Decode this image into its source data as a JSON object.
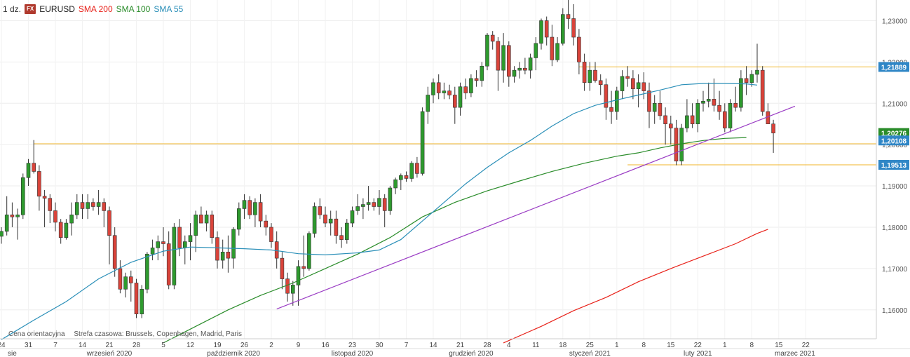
{
  "header": {
    "period": "1 dz.",
    "badge": "FX",
    "symbol": "EURUSD",
    "sma200_label": "SMA 200",
    "sma100_label": "SMA 100",
    "sma55_label": "SMA 55"
  },
  "footer": {
    "price_type": "Cena orientacyjna",
    "timezone": "Strefa czasowa: Brussels, Copenhagen, Madrid, Paris"
  },
  "colors": {
    "up": "#2e9a2e",
    "down": "#d9433a",
    "sma200": "#e8231b",
    "sma100": "#2a8c2a",
    "sma55": "#2a8fb8",
    "trendline": "#9a3cc4",
    "level": "#f0b429"
  },
  "chart_data": {
    "type": "candlestick",
    "ylim": [
      1.153,
      1.235
    ],
    "y_ticks": [
      "1,16000",
      "1,17000",
      "1,18000",
      "1,19000",
      "1,20000",
      "1,21000",
      "1,22000",
      "1,23000"
    ],
    "x_ticks": [
      {
        "i": 0,
        "label": "24"
      },
      {
        "i": 5,
        "label": "31"
      },
      {
        "i": 10,
        "label": "7"
      },
      {
        "i": 15,
        "label": "14"
      },
      {
        "i": 20,
        "label": "21"
      },
      {
        "i": 25,
        "label": "28"
      },
      {
        "i": 30,
        "label": "5"
      },
      {
        "i": 35,
        "label": "12"
      },
      {
        "i": 40,
        "label": "19"
      },
      {
        "i": 45,
        "label": "26"
      },
      {
        "i": 50,
        "label": "2"
      },
      {
        "i": 55,
        "label": "9"
      },
      {
        "i": 60,
        "label": "16"
      },
      {
        "i": 65,
        "label": "23"
      },
      {
        "i": 70,
        "label": "30"
      },
      {
        "i": 75,
        "label": "7"
      },
      {
        "i": 80,
        "label": "14"
      },
      {
        "i": 85,
        "label": "21"
      },
      {
        "i": 90,
        "label": "28"
      },
      {
        "i": 94,
        "label": "4"
      },
      {
        "i": 99,
        "label": "11"
      },
      {
        "i": 104,
        "label": "18"
      },
      {
        "i": 109,
        "label": "25"
      },
      {
        "i": 114,
        "label": "1"
      },
      {
        "i": 119,
        "label": "8"
      },
      {
        "i": 124,
        "label": "15"
      },
      {
        "i": 129,
        "label": "22"
      },
      {
        "i": 134,
        "label": "1"
      },
      {
        "i": 139,
        "label": "8"
      },
      {
        "i": 144,
        "label": "15"
      },
      {
        "i": 149,
        "label": "22"
      }
    ],
    "months": [
      {
        "i": 2,
        "label": "sie"
      },
      {
        "i": 20,
        "label": "wrzesień 2020"
      },
      {
        "i": 43,
        "label": "październik 2020"
      },
      {
        "i": 65,
        "label": "listopad 2020"
      },
      {
        "i": 87,
        "label": "grudzień 2020"
      },
      {
        "i": 109,
        "label": "styczeń 2021"
      },
      {
        "i": 129,
        "label": "luty 2021"
      },
      {
        "i": 147,
        "label": "marzec 2021"
      }
    ],
    "right_labels": [
      {
        "value": 1.2188,
        "text": "1,21889",
        "color": "#2f86c6"
      },
      {
        "value": 1.2028,
        "text": "1,20276",
        "color": "#2a8c2a"
      },
      {
        "value": 1.201,
        "text": "1,20108",
        "color": "#2f86c6"
      },
      {
        "value": 1.1951,
        "text": "1,19513",
        "color": "#2f86c6"
      }
    ],
    "levels": [
      {
        "from": 6,
        "y": 1.2002
      },
      {
        "from": 107,
        "y": 1.2188
      },
      {
        "from": 116,
        "y": 1.1951
      }
    ],
    "trendline": {
      "x1": 51,
      "y1": 1.1602,
      "x2": 147,
      "y2": 1.2093
    },
    "candles": [
      [
        1.1778,
        1.18,
        1.176,
        1.179
      ],
      [
        1.179,
        1.1875,
        1.178,
        1.183
      ],
      [
        1.183,
        1.186,
        1.18,
        1.1825
      ],
      [
        1.1825,
        1.1845,
        1.177,
        1.183
      ],
      [
        1.183,
        1.193,
        1.182,
        1.192
      ],
      [
        1.192,
        1.1965,
        1.19,
        1.1955
      ],
      [
        1.1955,
        1.2011,
        1.193,
        1.1935
      ],
      [
        1.1935,
        1.195,
        1.184,
        1.1875
      ],
      [
        1.1875,
        1.189,
        1.18,
        1.187
      ],
      [
        1.187,
        1.188,
        1.181,
        1.184
      ],
      [
        1.184,
        1.186,
        1.179,
        1.1812
      ],
      [
        1.1812,
        1.182,
        1.176,
        1.1775
      ],
      [
        1.1775,
        1.182,
        1.177,
        1.181
      ],
      [
        1.181,
        1.186,
        1.178,
        1.183
      ],
      [
        1.183,
        1.188,
        1.182,
        1.186
      ],
      [
        1.186,
        1.188,
        1.182,
        1.1845
      ],
      [
        1.1845,
        1.188,
        1.182,
        1.186
      ],
      [
        1.186,
        1.187,
        1.184,
        1.185
      ],
      [
        1.185,
        1.189,
        1.183,
        1.186
      ],
      [
        1.186,
        1.187,
        1.18,
        1.184
      ],
      [
        1.184,
        1.185,
        1.171,
        1.178
      ],
      [
        1.178,
        1.18,
        1.168,
        1.17
      ],
      [
        1.17,
        1.172,
        1.164,
        1.165
      ],
      [
        1.165,
        1.169,
        1.163,
        1.168
      ],
      [
        1.168,
        1.1695,
        1.162,
        1.1665
      ],
      [
        1.1665,
        1.1675,
        1.158,
        1.159
      ],
      [
        1.159,
        1.166,
        1.158,
        1.165
      ],
      [
        1.165,
        1.174,
        1.164,
        1.1735
      ],
      [
        1.1735,
        1.177,
        1.172,
        1.175
      ],
      [
        1.175,
        1.178,
        1.172,
        1.1765
      ],
      [
        1.1765,
        1.18,
        1.173,
        1.176
      ],
      [
        1.176,
        1.179,
        1.165,
        1.166
      ],
      [
        1.166,
        1.181,
        1.165,
        1.18
      ],
      [
        1.18,
        1.182,
        1.173,
        1.175
      ],
      [
        1.175,
        1.178,
        1.171,
        1.1765
      ],
      [
        1.1765,
        1.181,
        1.172,
        1.178
      ],
      [
        1.178,
        1.184,
        1.174,
        1.183
      ],
      [
        1.183,
        1.185,
        1.181,
        1.181
      ],
      [
        1.181,
        1.184,
        1.179,
        1.183
      ],
      [
        1.183,
        1.184,
        1.176,
        1.1775
      ],
      [
        1.1775,
        1.179,
        1.17,
        1.172
      ],
      [
        1.172,
        1.177,
        1.17,
        1.174
      ],
      [
        1.174,
        1.178,
        1.169,
        1.1725
      ],
      [
        1.1725,
        1.18,
        1.17,
        1.1795
      ],
      [
        1.1795,
        1.186,
        1.178,
        1.1845
      ],
      [
        1.1845,
        1.188,
        1.182,
        1.1865
      ],
      [
        1.1865,
        1.1875,
        1.182,
        1.183
      ],
      [
        1.183,
        1.187,
        1.18,
        1.186
      ],
      [
        1.186,
        1.188,
        1.18,
        1.1815
      ],
      [
        1.1815,
        1.183,
        1.178,
        1.18
      ],
      [
        1.18,
        1.181,
        1.175,
        1.1765
      ],
      [
        1.1765,
        1.179,
        1.17,
        1.1725
      ],
      [
        1.1725,
        1.174,
        1.165,
        1.1675
      ],
      [
        1.1675,
        1.169,
        1.162,
        1.164
      ],
      [
        1.164,
        1.167,
        1.161,
        1.166
      ],
      [
        1.166,
        1.172,
        1.161,
        1.1705
      ],
      [
        1.1705,
        1.178,
        1.168,
        1.17
      ],
      [
        1.17,
        1.179,
        1.1695,
        1.1785
      ],
      [
        1.1785,
        1.186,
        1.1775,
        1.185
      ],
      [
        1.185,
        1.187,
        1.182,
        1.183
      ],
      [
        1.183,
        1.185,
        1.18,
        1.181
      ],
      [
        1.181,
        1.184,
        1.178,
        1.182
      ],
      [
        1.182,
        1.184,
        1.176,
        1.178
      ],
      [
        1.178,
        1.18,
        1.175,
        1.177
      ],
      [
        1.177,
        1.182,
        1.176,
        1.181
      ],
      [
        1.181,
        1.185,
        1.18,
        1.184
      ],
      [
        1.184,
        1.188,
        1.183,
        1.185
      ],
      [
        1.185,
        1.187,
        1.182,
        1.1855
      ],
      [
        1.1855,
        1.19,
        1.184,
        1.186
      ],
      [
        1.186,
        1.187,
        1.184,
        1.185
      ],
      [
        1.185,
        1.189,
        1.183,
        1.187
      ],
      [
        1.187,
        1.188,
        1.18,
        1.184
      ],
      [
        1.184,
        1.19,
        1.183,
        1.1895
      ],
      [
        1.1895,
        1.192,
        1.188,
        1.1915
      ],
      [
        1.1915,
        1.193,
        1.189,
        1.1925
      ],
      [
        1.1925,
        1.1935,
        1.191,
        1.1918
      ],
      [
        1.1918,
        1.196,
        1.191,
        1.1955
      ],
      [
        1.1955,
        1.197,
        1.192,
        1.193
      ],
      [
        1.193,
        1.209,
        1.1925,
        1.208
      ],
      [
        1.208,
        1.214,
        1.205,
        1.212
      ],
      [
        1.212,
        1.216,
        1.21,
        1.215
      ],
      [
        1.215,
        1.217,
        1.211,
        1.2125
      ],
      [
        1.2125,
        1.215,
        1.211,
        1.213
      ],
      [
        1.213,
        1.2145,
        1.211,
        1.212
      ],
      [
        1.212,
        1.214,
        1.205,
        1.209
      ],
      [
        1.209,
        1.215,
        1.207,
        1.214
      ],
      [
        1.214,
        1.216,
        1.211,
        1.2125
      ],
      [
        1.2125,
        1.217,
        1.2115,
        1.216
      ],
      [
        1.216,
        1.218,
        1.214,
        1.2155
      ],
      [
        1.2155,
        1.22,
        1.214,
        1.219
      ],
      [
        1.219,
        1.227,
        1.218,
        1.2265
      ],
      [
        1.2265,
        1.2275,
        1.223,
        1.225
      ],
      [
        1.225,
        1.226,
        1.213,
        1.218
      ],
      [
        1.218,
        1.227,
        1.215,
        1.224
      ],
      [
        1.224,
        1.225,
        1.214,
        1.2165
      ],
      [
        1.2165,
        1.219,
        1.215,
        1.218
      ],
      [
        1.218,
        1.22,
        1.216,
        1.2185
      ],
      [
        1.2185,
        1.221,
        1.217,
        1.218
      ],
      [
        1.218,
        1.222,
        1.216,
        1.221
      ],
      [
        1.221,
        1.226,
        1.218,
        1.2245
      ],
      [
        1.2245,
        1.2305,
        1.223,
        1.23
      ],
      [
        1.23,
        1.231,
        1.224,
        1.226
      ],
      [
        1.226,
        1.229,
        1.219,
        1.2205
      ],
      [
        1.2205,
        1.226,
        1.22,
        1.2245
      ],
      [
        1.2245,
        1.233,
        1.224,
        1.2315
      ],
      [
        1.2315,
        1.235,
        1.228,
        1.2305
      ],
      [
        1.2305,
        1.234,
        1.224,
        1.226
      ],
      [
        1.226,
        1.228,
        1.217,
        1.22
      ],
      [
        1.22,
        1.222,
        1.213,
        1.215
      ],
      [
        1.215,
        1.22,
        1.213,
        1.218
      ],
      [
        1.218,
        1.22,
        1.215,
        1.2155
      ],
      [
        1.2155,
        1.217,
        1.212,
        1.2145
      ],
      [
        1.2145,
        1.216,
        1.206,
        1.209
      ],
      [
        1.209,
        1.213,
        1.205,
        1.208
      ],
      [
        1.208,
        1.214,
        1.206,
        1.213
      ],
      [
        1.213,
        1.218,
        1.211,
        1.2165
      ],
      [
        1.2165,
        1.219,
        1.214,
        1.216
      ],
      [
        1.216,
        1.218,
        1.211,
        1.2135
      ],
      [
        1.2135,
        1.217,
        1.209,
        1.215
      ],
      [
        1.215,
        1.2175,
        1.211,
        1.213
      ],
      [
        1.213,
        1.215,
        1.204,
        1.208
      ],
      [
        1.208,
        1.212,
        1.205,
        1.21
      ],
      [
        1.21,
        1.213,
        1.206,
        1.207
      ],
      [
        1.207,
        1.209,
        1.2,
        1.205
      ],
      [
        1.205,
        1.207,
        1.2,
        1.204
      ],
      [
        1.204,
        1.206,
        1.195,
        1.196
      ],
      [
        1.196,
        1.205,
        1.195,
        1.204
      ],
      [
        1.204,
        1.211,
        1.203,
        1.207
      ],
      [
        1.207,
        1.21,
        1.204,
        1.205
      ],
      [
        1.205,
        1.211,
        1.203,
        1.21
      ],
      [
        1.21,
        1.213,
        1.208,
        1.2105
      ],
      [
        1.2105,
        1.215,
        1.209,
        1.211
      ],
      [
        1.211,
        1.216,
        1.208,
        1.2095
      ],
      [
        1.2095,
        1.213,
        1.206,
        1.208
      ],
      [
        1.208,
        1.21,
        1.203,
        1.204
      ],
      [
        1.204,
        1.211,
        1.203,
        1.21
      ],
      [
        1.21,
        1.214,
        1.208,
        1.209
      ],
      [
        1.209,
        1.218,
        1.208,
        1.216
      ],
      [
        1.216,
        1.219,
        1.212,
        1.215
      ],
      [
        1.215,
        1.218,
        1.214,
        1.217
      ],
      [
        1.217,
        1.2244,
        1.215,
        1.218
      ],
      [
        1.218,
        1.219,
        1.207,
        1.208
      ],
      [
        1.208,
        1.21,
        1.205,
        1.205
      ],
      [
        1.205,
        1.206,
        1.198,
        1.2028
      ]
    ],
    "sma55": [
      [
        0,
        1.1528
      ],
      [
        6,
        1.1575
      ],
      [
        12,
        1.162
      ],
      [
        18,
        1.1675
      ],
      [
        24,
        1.1715
      ],
      [
        30,
        1.1742
      ],
      [
        35,
        1.1752
      ],
      [
        40,
        1.175
      ],
      [
        45,
        1.1748
      ],
      [
        50,
        1.1745
      ],
      [
        55,
        1.1736
      ],
      [
        60,
        1.1733
      ],
      [
        66,
        1.1738
      ],
      [
        70,
        1.1745
      ],
      [
        74,
        1.177
      ],
      [
        78,
        1.1815
      ],
      [
        82,
        1.186
      ],
      [
        86,
        1.1905
      ],
      [
        90,
        1.1945
      ],
      [
        94,
        1.198
      ],
      [
        98,
        1.201
      ],
      [
        102,
        1.2045
      ],
      [
        106,
        1.2075
      ],
      [
        110,
        1.2095
      ],
      [
        114,
        1.2108
      ],
      [
        118,
        1.212
      ],
      [
        122,
        1.2132
      ],
      [
        126,
        1.2145
      ],
      [
        130,
        1.2148
      ],
      [
        134,
        1.2148
      ],
      [
        138,
        1.2147
      ],
      [
        140,
        1.2144
      ]
    ],
    "sma100": [
      [
        30,
        1.152
      ],
      [
        36,
        1.156
      ],
      [
        42,
        1.16
      ],
      [
        48,
        1.1635
      ],
      [
        54,
        1.1665
      ],
      [
        60,
        1.17
      ],
      [
        66,
        1.1735
      ],
      [
        72,
        1.1775
      ],
      [
        78,
        1.1825
      ],
      [
        84,
        1.186
      ],
      [
        90,
        1.1888
      ],
      [
        96,
        1.1912
      ],
      [
        102,
        1.1935
      ],
      [
        108,
        1.1955
      ],
      [
        114,
        1.1972
      ],
      [
        118,
        1.198
      ],
      [
        122,
        1.1992
      ],
      [
        126,
        1.2002
      ],
      [
        130,
        1.201
      ],
      [
        134,
        1.2015
      ],
      [
        138,
        1.2017
      ]
    ],
    "sma200": [
      [
        93,
        1.152
      ],
      [
        100,
        1.156
      ],
      [
        106,
        1.1598
      ],
      [
        112,
        1.163
      ],
      [
        118,
        1.1668
      ],
      [
        124,
        1.17
      ],
      [
        130,
        1.173
      ],
      [
        136,
        1.176
      ],
      [
        140,
        1.1785
      ],
      [
        142,
        1.1795
      ]
    ]
  }
}
